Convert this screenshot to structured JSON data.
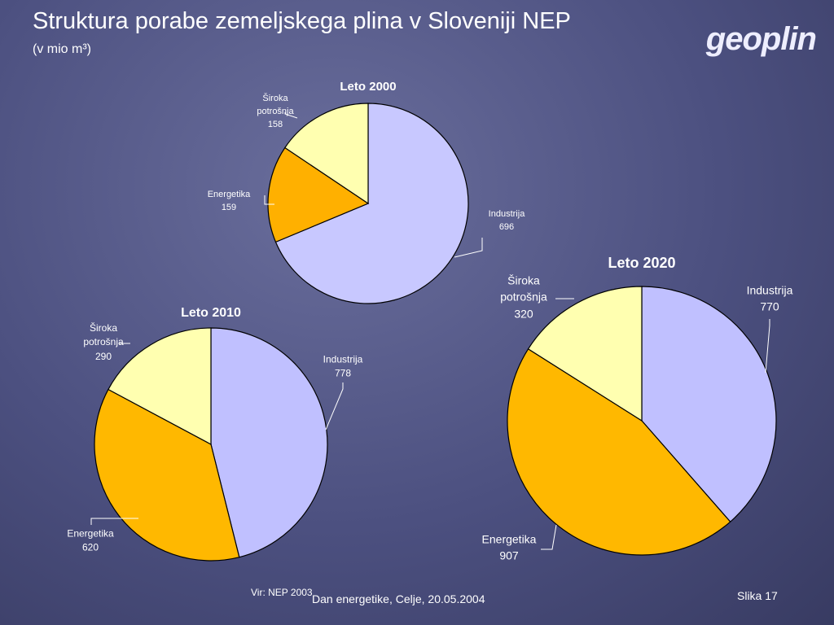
{
  "slide": {
    "title": "Struktura porabe zemeljskega plina v Sloveniji NEP",
    "subtitle": "(v mio m³)",
    "logo": "geoplin",
    "source": "Vir: NEP 2003",
    "footer": "Dan energetike, Celje, 20.05.2004",
    "slide_number": "Slika 17"
  },
  "chart_data": [
    {
      "type": "pie",
      "title": "Leto 2000",
      "categories": [
        "Industrija",
        "Energetika",
        "Široka potrošnja"
      ],
      "values": [
        696,
        159,
        158
      ],
      "colors": [
        "#c8c8ff",
        "#ffb000",
        "#ffffb0"
      ]
    },
    {
      "type": "pie",
      "title": "Leto 2010",
      "categories": [
        "Industrija",
        "Energetika",
        "Široka potrošnja"
      ],
      "values": [
        778,
        620,
        290
      ],
      "colors": [
        "#c0c0ff",
        "#ffb800",
        "#ffffb0"
      ]
    },
    {
      "type": "pie",
      "title": "Leto 2020",
      "categories": [
        "Industrija",
        "Energetika",
        "Široka potrošnja"
      ],
      "values": [
        770,
        907,
        320
      ],
      "colors": [
        "#c0c0ff",
        "#ffb800",
        "#ffffb0"
      ]
    }
  ]
}
